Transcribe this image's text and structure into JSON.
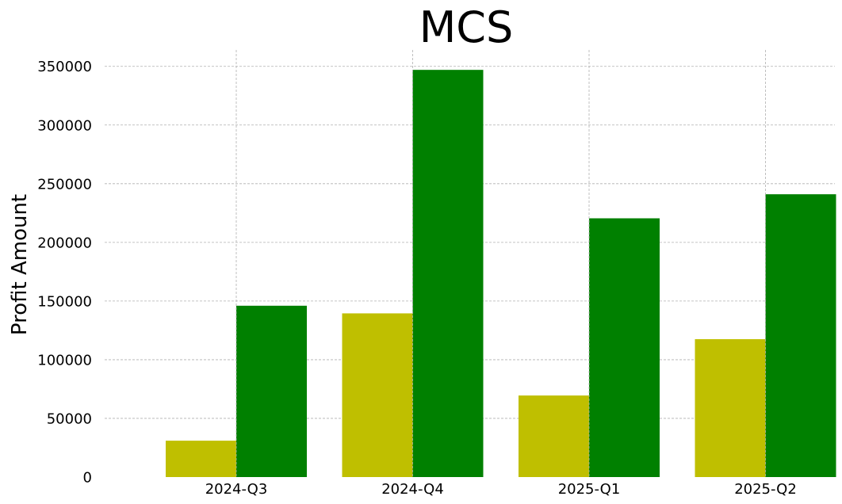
{
  "chart_data": {
    "type": "bar",
    "title": "MCS",
    "xlabel": "",
    "ylabel": "Profit Amount",
    "categories": [
      "2024-Q3",
      "2024-Q4",
      "2025-Q1",
      "2025-Q2"
    ],
    "series": [
      {
        "values": [
          31000,
          139500,
          69500,
          117500
        ],
        "color": "#bfbf00"
      },
      {
        "values": [
          146000,
          347000,
          220500,
          241000
        ],
        "color": "#008000"
      }
    ],
    "yticks": [
      0,
      50000,
      100000,
      150000,
      200000,
      250000,
      300000,
      350000
    ],
    "ylim": [
      0,
      364000
    ],
    "grid": true,
    "legend": "none"
  }
}
